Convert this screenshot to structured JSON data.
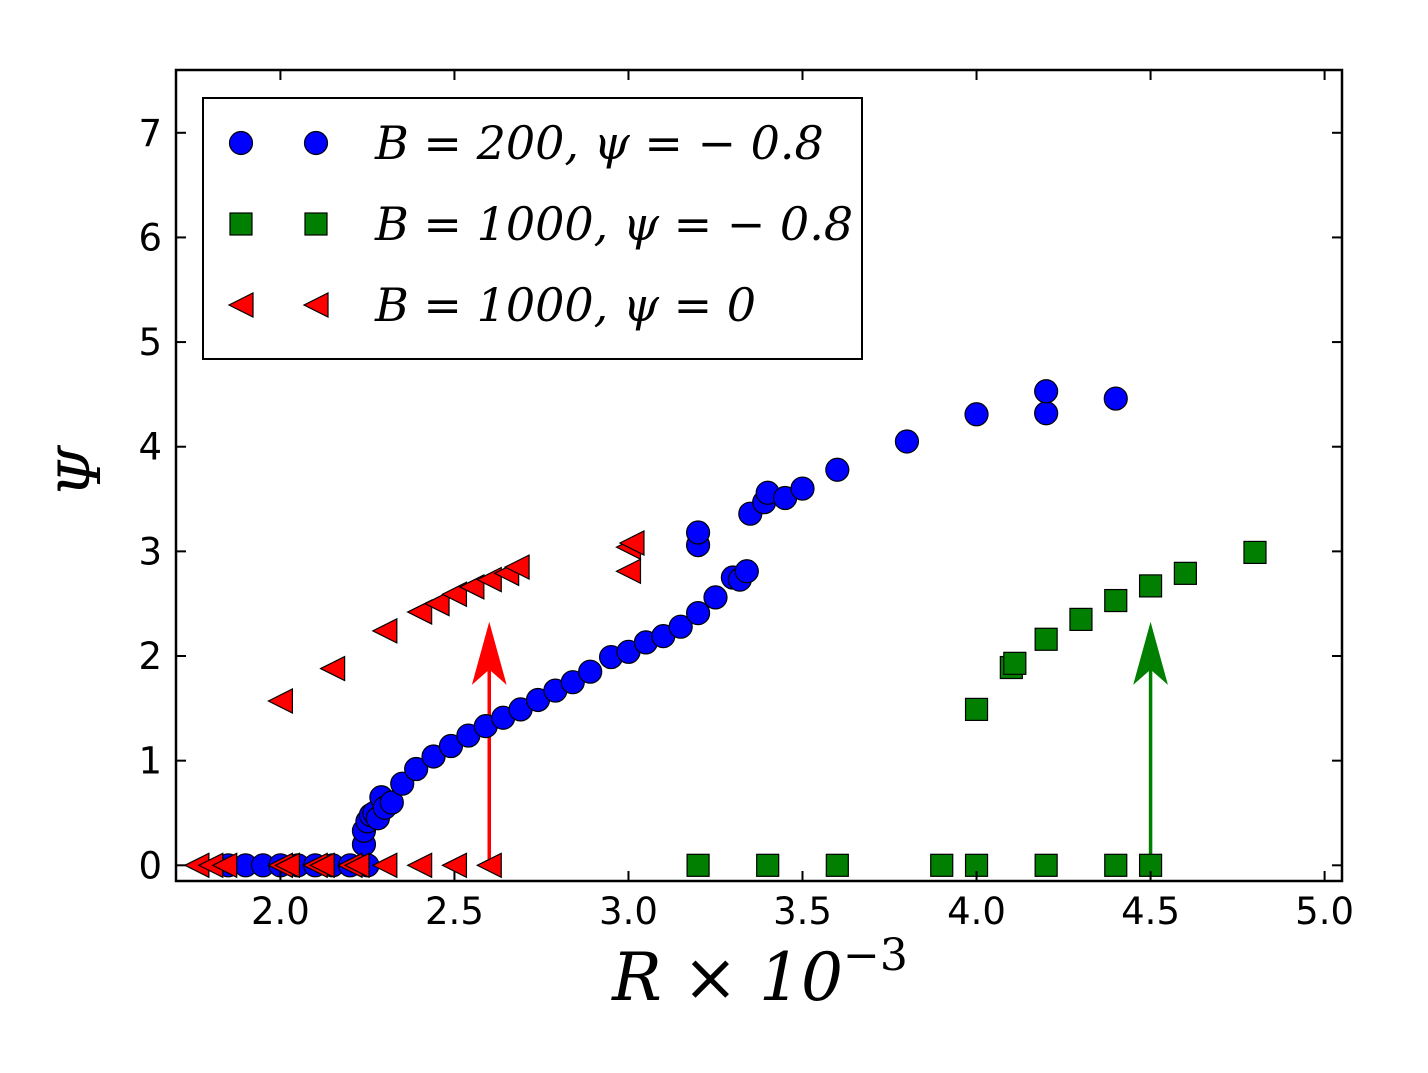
{
  "chart_data": {
    "type": "scatter",
    "xlabel": "R × 10",
    "xlabel_exponent": "−3",
    "ylabel": "Ψ",
    "xlim": [
      1.7,
      5.05
    ],
    "ylim": [
      -0.15,
      7.6
    ],
    "xticks": [
      2.0,
      2.5,
      3.0,
      3.5,
      4.0,
      4.5,
      5.0
    ],
    "xtick_labels": [
      "2.0",
      "2.5",
      "3.0",
      "3.5",
      "4.0",
      "4.5",
      "5.0"
    ],
    "yticks": [
      0,
      1,
      2,
      3,
      4,
      5,
      6,
      7
    ],
    "ytick_labels": [
      "0",
      "1",
      "2",
      "3",
      "4",
      "5",
      "6",
      "7"
    ],
    "grid": false,
    "legend_position": "top-left",
    "series": [
      {
        "name": "B = 200, ψ = − 0.8",
        "marker": "circle",
        "color": "#0000ff",
        "points": [
          [
            1.85,
            0
          ],
          [
            1.9,
            0
          ],
          [
            1.95,
            0
          ],
          [
            2.0,
            0
          ],
          [
            2.05,
            0
          ],
          [
            2.1,
            0
          ],
          [
            2.15,
            0
          ],
          [
            2.2,
            0
          ],
          [
            2.25,
            0
          ],
          [
            2.24,
            0.2
          ],
          [
            2.24,
            0.33
          ],
          [
            2.25,
            0.42
          ],
          [
            2.26,
            0.48
          ],
          [
            2.27,
            0.5
          ],
          [
            2.28,
            0.45
          ],
          [
            2.29,
            0.65
          ],
          [
            2.3,
            0.55
          ],
          [
            2.32,
            0.6
          ],
          [
            2.35,
            0.78
          ],
          [
            2.39,
            0.92
          ],
          [
            2.44,
            1.04
          ],
          [
            2.49,
            1.14
          ],
          [
            2.54,
            1.24
          ],
          [
            2.59,
            1.33
          ],
          [
            2.64,
            1.41
          ],
          [
            2.69,
            1.49
          ],
          [
            2.74,
            1.58
          ],
          [
            2.79,
            1.67
          ],
          [
            2.84,
            1.75
          ],
          [
            2.89,
            1.85
          ],
          [
            2.95,
            1.99
          ],
          [
            3.0,
            2.04
          ],
          [
            3.05,
            2.13
          ],
          [
            3.1,
            2.19
          ],
          [
            3.15,
            2.28
          ],
          [
            3.2,
            2.41
          ],
          [
            3.25,
            2.56
          ],
          [
            3.3,
            2.75
          ],
          [
            3.32,
            2.73
          ],
          [
            3.34,
            2.81
          ],
          [
            3.2,
            3.06
          ],
          [
            3.2,
            3.18
          ],
          [
            3.35,
            3.36
          ],
          [
            3.39,
            3.47
          ],
          [
            3.4,
            3.56
          ],
          [
            3.45,
            3.51
          ],
          [
            3.5,
            3.6
          ],
          [
            3.6,
            3.78
          ],
          [
            3.8,
            4.05
          ],
          [
            4.0,
            4.31
          ],
          [
            4.2,
            4.32
          ],
          [
            4.2,
            4.53
          ],
          [
            4.4,
            4.46
          ]
        ]
      },
      {
        "name": "B = 1000, ψ = − 0.8",
        "marker": "square",
        "color": "#007f00",
        "points": [
          [
            3.2,
            0
          ],
          [
            3.4,
            0
          ],
          [
            3.6,
            0
          ],
          [
            3.9,
            0
          ],
          [
            4.0,
            0
          ],
          [
            4.2,
            0
          ],
          [
            4.4,
            0
          ],
          [
            4.5,
            0
          ],
          [
            4.0,
            1.49
          ],
          [
            4.1,
            1.89
          ],
          [
            4.11,
            1.93
          ],
          [
            4.2,
            2.16
          ],
          [
            4.3,
            2.35
          ],
          [
            4.4,
            2.53
          ],
          [
            4.5,
            2.67
          ],
          [
            4.6,
            2.79
          ],
          [
            4.8,
            2.99
          ]
        ]
      },
      {
        "name": "B = 1000, ψ = 0",
        "marker": "triangle-left",
        "color": "#ff0000",
        "points": [
          [
            1.76,
            0
          ],
          [
            1.8,
            0
          ],
          [
            1.84,
            0
          ],
          [
            2.0,
            0
          ],
          [
            2.02,
            0
          ],
          [
            2.1,
            0
          ],
          [
            2.12,
            0
          ],
          [
            2.2,
            0
          ],
          [
            2.22,
            0
          ],
          [
            2.3,
            0
          ],
          [
            2.4,
            0
          ],
          [
            2.5,
            0
          ],
          [
            2.6,
            0
          ],
          [
            2.0,
            1.57
          ],
          [
            2.15,
            1.88
          ],
          [
            2.3,
            2.24
          ],
          [
            2.4,
            2.42
          ],
          [
            2.45,
            2.5
          ],
          [
            2.5,
            2.59
          ],
          [
            2.55,
            2.66
          ],
          [
            2.6,
            2.73
          ],
          [
            2.65,
            2.79
          ],
          [
            2.68,
            2.85
          ],
          [
            3.0,
            2.81
          ],
          [
            3.0,
            3.04
          ],
          [
            3.01,
            3.08
          ]
        ]
      }
    ],
    "annotations": [
      {
        "type": "arrow",
        "color": "#ff0000",
        "x": 2.6,
        "y_from": 0.0,
        "y_to": 2.3
      },
      {
        "type": "arrow",
        "color": "#007f00",
        "x": 4.5,
        "y_from": 0.0,
        "y_to": 2.3
      }
    ]
  }
}
